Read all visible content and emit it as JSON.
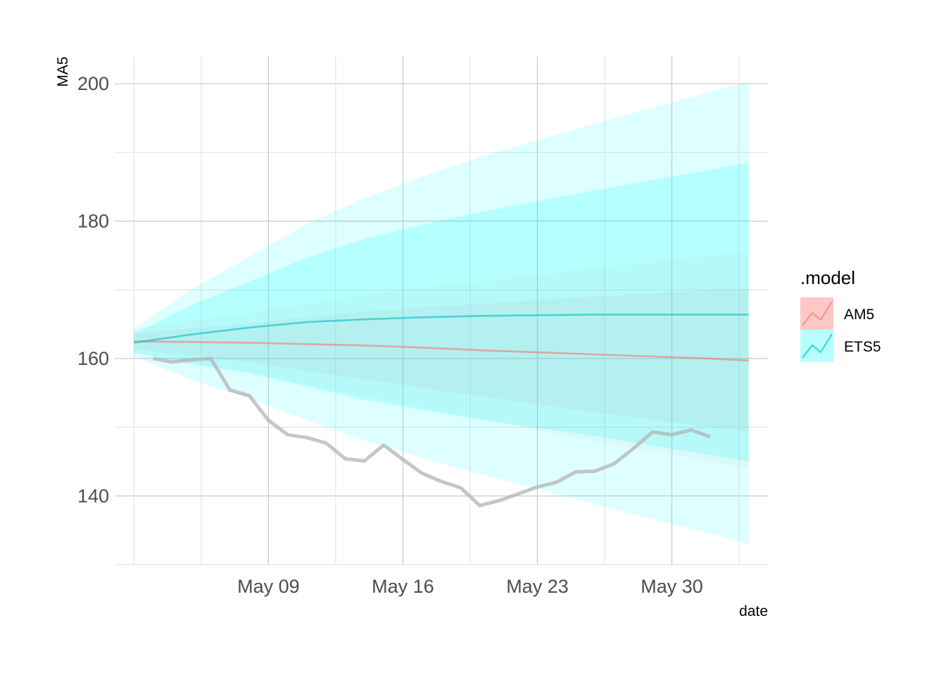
{
  "chart_data": {
    "type": "line",
    "xlabel": "date",
    "ylabel": "MA5",
    "x_ticks": [
      "2022-05-09",
      "2022-05-16",
      "2022-05-23",
      "2022-05-30"
    ],
    "x_tick_labels": [
      "May 09",
      "May 16",
      "May 23",
      "May 30"
    ],
    "x_range": [
      "2022-05-01",
      "2022-06-04"
    ],
    "y_ticks": [
      140,
      160,
      180,
      200
    ],
    "y_range": [
      130,
      204
    ],
    "grid": true,
    "legend": {
      "title": ".model",
      "placement": "right",
      "entries": [
        {
          "label": "AM5",
          "color": "#F8766D"
        },
        {
          "label": "ETS5",
          "color": "#00BFC4"
        }
      ]
    },
    "actual": {
      "color": "#b3b3b3",
      "x": [
        "2022-05-03",
        "2022-05-04",
        "2022-05-05",
        "2022-05-06",
        "2022-05-07",
        "2022-05-08",
        "2022-05-09",
        "2022-05-10",
        "2022-05-11",
        "2022-05-12",
        "2022-05-13",
        "2022-05-14",
        "2022-05-15",
        "2022-05-16",
        "2022-05-17",
        "2022-05-18",
        "2022-05-19",
        "2022-05-20",
        "2022-05-21",
        "2022-05-22",
        "2022-05-23",
        "2022-05-24",
        "2022-05-25",
        "2022-05-26",
        "2022-05-27",
        "2022-05-28",
        "2022-05-29",
        "2022-05-30",
        "2022-05-31",
        "2022-06-01",
        "2022-06-02",
        "2022-06-03"
      ],
      "y": [
        160.0,
        159.5,
        159.8,
        160.0,
        155.4,
        154.6,
        151.0,
        148.9,
        148.5,
        147.7,
        145.4,
        145.1,
        147.4,
        145.3,
        143.3,
        142.1,
        141.2,
        138.6,
        139.3,
        140.3,
        141.3,
        142.0,
        143.5,
        143.6,
        144.7,
        146.9,
        149.3,
        148.9,
        149.6,
        148.6,
        null,
        null
      ]
    },
    "forecasts": [
      {
        "name": "AM5",
        "color": "#F8766D",
        "x": [
          "2022-05-02",
          "2022-05-05",
          "2022-05-08",
          "2022-05-11",
          "2022-05-14",
          "2022-05-17",
          "2022-05-20",
          "2022-05-23",
          "2022-05-26",
          "2022-05-29",
          "2022-06-01",
          "2022-06-03"
        ],
        "mean": [
          162.5,
          162.4,
          162.3,
          162.1,
          161.9,
          161.6,
          161.2,
          160.9,
          160.6,
          160.3,
          160.0,
          159.7
        ],
        "lo80": [
          161.4,
          160.4,
          159.5,
          158.2,
          157.0,
          155.7,
          154.5,
          153.3,
          152.2,
          151.1,
          150.0,
          149.3
        ],
        "hi80": [
          163.6,
          164.4,
          165.1,
          166.0,
          166.8,
          167.5,
          167.9,
          168.5,
          169.0,
          169.5,
          170.0,
          170.1
        ],
        "lo95": [
          160.8,
          159.3,
          158.0,
          156.2,
          154.5,
          152.8,
          151.2,
          149.6,
          148.0,
          146.5,
          145.0,
          144.0
        ],
        "hi95": [
          164.2,
          165.5,
          166.6,
          168.0,
          169.3,
          170.4,
          171.2,
          172.2,
          173.2,
          174.1,
          175.0,
          175.4
        ]
      },
      {
        "name": "ETS5",
        "color": "#00BFC4",
        "x": [
          "2022-05-02",
          "2022-05-05",
          "2022-05-08",
          "2022-05-11",
          "2022-05-14",
          "2022-05-17",
          "2022-05-20",
          "2022-05-23",
          "2022-05-26",
          "2022-05-29",
          "2022-06-01",
          "2022-06-03"
        ],
        "mean": [
          162.3,
          163.5,
          164.5,
          165.3,
          165.7,
          166.0,
          166.2,
          166.3,
          166.4,
          166.4,
          166.4,
          166.4
        ],
        "lo80": [
          160.9,
          159.2,
          157.8,
          155.9,
          154.0,
          152.5,
          151.1,
          149.9,
          148.7,
          147.3,
          146.0,
          145.0
        ],
        "hi80": [
          163.7,
          167.8,
          171.2,
          174.7,
          177.4,
          179.5,
          181.3,
          182.9,
          184.5,
          186.0,
          187.5,
          188.5
        ],
        "lo95": [
          160.3,
          156.9,
          154.2,
          151.0,
          148.1,
          145.5,
          143.2,
          141.0,
          138.8,
          136.6,
          134.5,
          133.0
        ],
        "hi95": [
          164.3,
          170.1,
          174.8,
          179.6,
          183.3,
          186.5,
          189.3,
          191.8,
          194.2,
          196.5,
          198.8,
          200.3
        ]
      }
    ]
  }
}
